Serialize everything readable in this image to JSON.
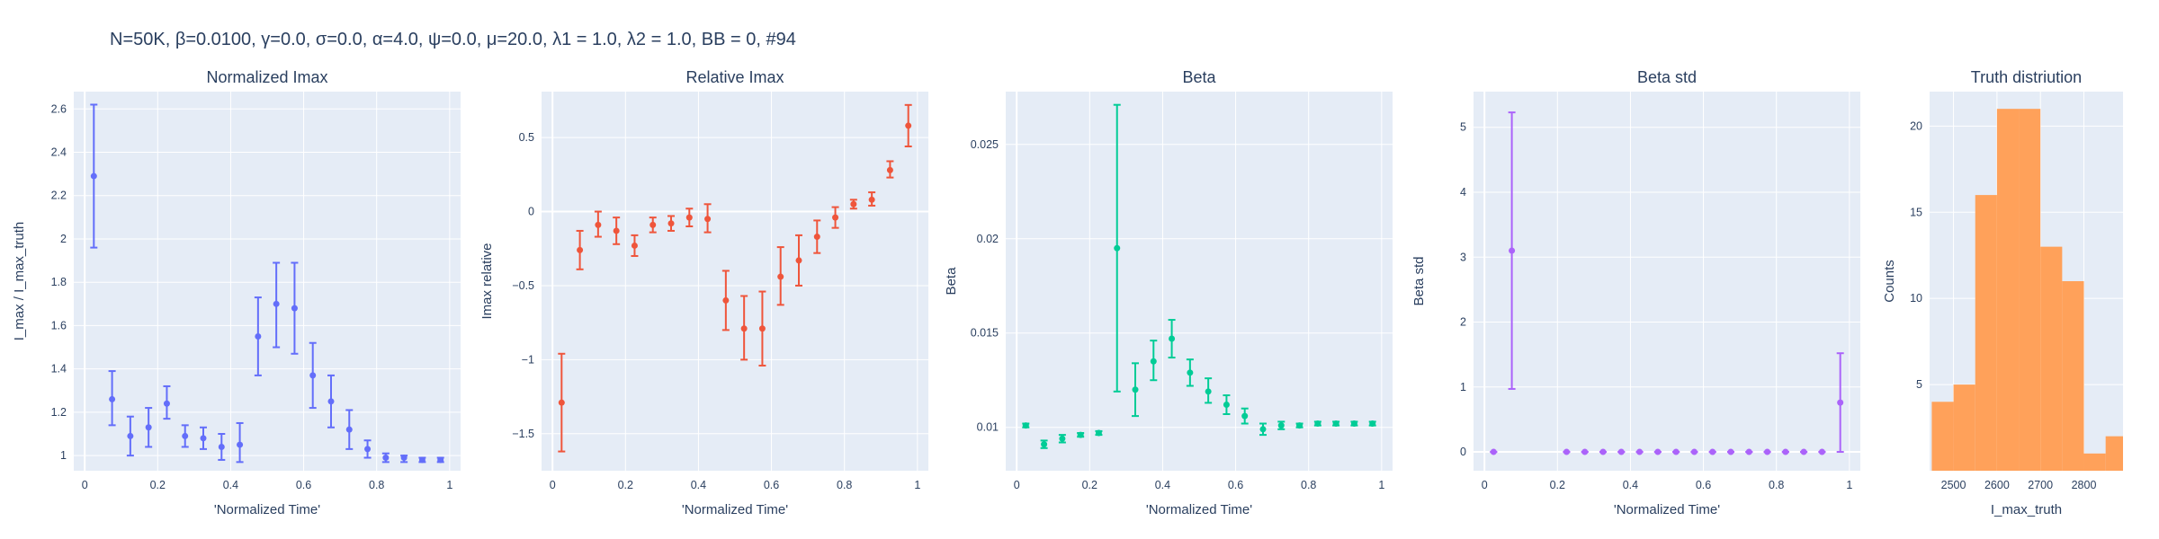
{
  "figure_title": "N=50K, β=0.0100, γ=0.0, σ=0.0,  α=4.0, ψ=0.0, μ=20.0, λ1 = 1.0, λ2 = 1.0, BB = 0, #94",
  "chart_data": [
    {
      "type": "scatter",
      "title": "Normalized Imax",
      "xlabel": "'Normalized Time'",
      "ylabel": "I_max / I_max_truth",
      "color": "#636efa",
      "xlim": [
        -0.03,
        1.03
      ],
      "ylim": [
        0.93,
        2.68
      ],
      "xticks": [
        0,
        0.2,
        0.4,
        0.6,
        0.8,
        1
      ],
      "xticklabels": [
        "0",
        "0.2",
        "0.4",
        "0.6",
        "0.8",
        "1"
      ],
      "yticks": [
        1,
        1.2,
        1.4,
        1.6,
        1.8,
        2,
        2.2,
        2.4,
        2.6
      ],
      "yticklabels": [
        "1",
        "1.2",
        "1.4",
        "1.6",
        "1.8",
        "2",
        "2.2",
        "2.4",
        "2.6"
      ],
      "x": [
        0.025,
        0.075,
        0.125,
        0.175,
        0.225,
        0.275,
        0.325,
        0.375,
        0.425,
        0.475,
        0.525,
        0.575,
        0.625,
        0.675,
        0.725,
        0.775,
        0.825,
        0.875,
        0.925,
        0.975
      ],
      "y": [
        2.29,
        1.26,
        1.09,
        1.13,
        1.24,
        1.09,
        1.08,
        1.04,
        1.05,
        1.55,
        1.7,
        1.68,
        1.37,
        1.25,
        1.12,
        1.03,
        0.99,
        0.99,
        0.98,
        0.98
      ],
      "err_lo": [
        1.96,
        1.14,
        1.0,
        1.04,
        1.17,
        1.04,
        1.03,
        0.98,
        0.97,
        1.37,
        1.5,
        1.47,
        1.22,
        1.13,
        1.03,
        0.99,
        0.97,
        0.97,
        0.97,
        0.97
      ],
      "err_hi": [
        2.62,
        1.39,
        1.18,
        1.22,
        1.32,
        1.14,
        1.13,
        1.1,
        1.15,
        1.73,
        1.89,
        1.89,
        1.52,
        1.37,
        1.21,
        1.07,
        1.01,
        1.0,
        0.99,
        0.99
      ]
    },
    {
      "type": "scatter",
      "title": "Relative Imax",
      "xlabel": "'Normalized Time'",
      "ylabel": "Imax relative",
      "color": "#ef553b",
      "xlim": [
        -0.03,
        1.03
      ],
      "ylim": [
        -1.75,
        0.81
      ],
      "xticks": [
        0,
        0.2,
        0.4,
        0.6,
        0.8,
        1
      ],
      "xticklabels": [
        "0",
        "0.2",
        "0.4",
        "0.6",
        "0.8",
        "1"
      ],
      "yticks": [
        -1.5,
        -1,
        -0.5,
        0,
        0.5
      ],
      "yticklabels": [
        "−1.5",
        "−1",
        "−0.5",
        "0",
        "0.5"
      ],
      "x": [
        0.025,
        0.075,
        0.125,
        0.175,
        0.225,
        0.275,
        0.325,
        0.375,
        0.425,
        0.475,
        0.525,
        0.575,
        0.625,
        0.675,
        0.725,
        0.775,
        0.825,
        0.875,
        0.925,
        0.975
      ],
      "y": [
        -1.29,
        -0.26,
        -0.09,
        -0.13,
        -0.23,
        -0.09,
        -0.08,
        -0.04,
        -0.05,
        -0.6,
        -0.79,
        -0.79,
        -0.44,
        -0.33,
        -0.17,
        -0.04,
        0.05,
        0.08,
        0.28,
        0.58
      ],
      "err_lo": [
        -1.62,
        -0.39,
        -0.17,
        -0.22,
        -0.3,
        -0.14,
        -0.13,
        -0.1,
        -0.14,
        -0.8,
        -1.0,
        -1.04,
        -0.63,
        -0.5,
        -0.28,
        -0.11,
        0.02,
        0.04,
        0.23,
        0.44
      ],
      "err_hi": [
        -0.96,
        -0.13,
        0.0,
        -0.04,
        -0.16,
        -0.04,
        -0.03,
        0.02,
        0.05,
        -0.4,
        -0.57,
        -0.54,
        -0.24,
        -0.16,
        -0.06,
        0.03,
        0.08,
        0.13,
        0.34,
        0.72
      ]
    },
    {
      "type": "scatter",
      "title": "Beta",
      "xlabel": "'Normalized Time'",
      "ylabel": "Beta",
      "color": "#00cc96",
      "xlim": [
        -0.03,
        1.03
      ],
      "ylim": [
        0.0077,
        0.0278
      ],
      "xticks": [
        0,
        0.2,
        0.4,
        0.6,
        0.8,
        1
      ],
      "xticklabels": [
        "0",
        "0.2",
        "0.4",
        "0.6",
        "0.8",
        "1"
      ],
      "yticks": [
        0.01,
        0.015,
        0.02,
        0.025
      ],
      "yticklabels": [
        "0.01",
        "0.015",
        "0.02",
        "0.025"
      ],
      "x": [
        0.025,
        0.075,
        0.125,
        0.175,
        0.225,
        0.275,
        0.325,
        0.375,
        0.425,
        0.475,
        0.525,
        0.575,
        0.625,
        0.675,
        0.725,
        0.775,
        0.825,
        0.875,
        0.925,
        0.975
      ],
      "y": [
        0.0101,
        0.0091,
        0.0094,
        0.0096,
        0.0097,
        0.0195,
        0.012,
        0.0135,
        0.0147,
        0.0129,
        0.0119,
        0.0112,
        0.0106,
        0.0099,
        0.0101,
        0.0101,
        0.0102,
        0.0102,
        0.0102,
        0.0102
      ],
      "err_lo": [
        0.01,
        0.0089,
        0.0092,
        0.0095,
        0.0096,
        0.0119,
        0.0106,
        0.0125,
        0.0137,
        0.0122,
        0.0113,
        0.0107,
        0.0102,
        0.0096,
        0.0099,
        0.01,
        0.0101,
        0.0101,
        0.0101,
        0.0101
      ],
      "err_hi": [
        0.0102,
        0.0093,
        0.0096,
        0.0097,
        0.0098,
        0.0271,
        0.0134,
        0.0146,
        0.0157,
        0.0136,
        0.0126,
        0.0117,
        0.011,
        0.0102,
        0.0103,
        0.0102,
        0.0103,
        0.0103,
        0.0103,
        0.0103
      ]
    },
    {
      "type": "scatter",
      "title": "Beta std",
      "xlabel": "'Normalized Time'",
      "ylabel": "Beta std",
      "color": "#ab63fa",
      "xlim": [
        -0.03,
        1.03
      ],
      "ylim": [
        -0.29,
        5.55
      ],
      "xticks": [
        0,
        0.2,
        0.4,
        0.6,
        0.8,
        1
      ],
      "xticklabels": [
        "0",
        "0.2",
        "0.4",
        "0.6",
        "0.8",
        "1"
      ],
      "yticks": [
        0,
        1,
        2,
        3,
        4,
        5
      ],
      "yticklabels": [
        "0",
        "1",
        "2",
        "3",
        "4",
        "5"
      ],
      "x": [
        0.025,
        0.075,
        0.225,
        0.275,
        0.325,
        0.375,
        0.425,
        0.475,
        0.525,
        0.575,
        0.625,
        0.675,
        0.725,
        0.775,
        0.825,
        0.875,
        0.925,
        0.975
      ],
      "y": [
        0.0,
        3.1,
        0.0,
        0.0,
        0.0,
        0.0,
        0.0,
        0.0,
        0.0,
        0.0,
        0.0,
        0.0,
        0.0,
        0.0,
        0.0,
        0.0,
        0.0,
        0.76
      ],
      "err_lo": [
        0.0,
        0.97,
        0.0,
        0.0,
        0.0,
        0.0,
        0.0,
        0.0,
        0.0,
        0.0,
        0.0,
        0.0,
        0.0,
        0.0,
        0.0,
        0.0,
        0.0,
        0.0
      ],
      "err_hi": [
        0.0,
        5.23,
        0.0,
        0.0,
        0.0,
        0.0,
        0.0,
        0.0,
        0.0,
        0.0,
        0.0,
        0.0,
        0.0,
        0.0,
        0.0,
        0.0,
        0.0,
        1.52
      ]
    },
    {
      "type": "histogram",
      "title": "Truth distriution",
      "xlabel": "I_max_truth",
      "ylabel": "Counts",
      "color": "#ffa15a",
      "xlim": [
        2445,
        2890
      ],
      "ylim": [
        0,
        22
      ],
      "xticks": [
        2500,
        2600,
        2700,
        2800
      ],
      "xticklabels": [
        "2500",
        "2600",
        "2700",
        "2800"
      ],
      "yticks": [
        5,
        10,
        15,
        20
      ],
      "yticklabels": [
        "5",
        "10",
        "15",
        "20"
      ],
      "bin_edges": [
        2450,
        2500,
        2550,
        2600,
        2650,
        2700,
        2750,
        2800,
        2850,
        2900
      ],
      "counts": [
        4,
        5,
        16,
        21,
        21,
        13,
        11,
        1,
        2
      ]
    }
  ]
}
